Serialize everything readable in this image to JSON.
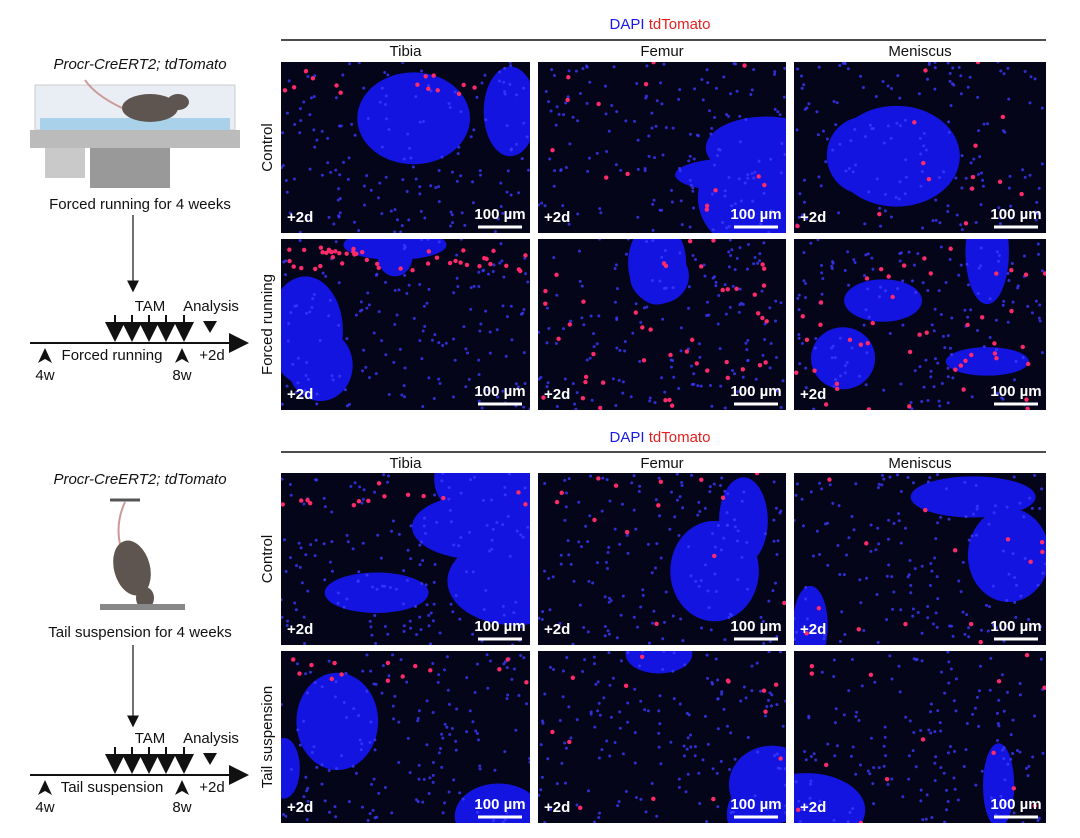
{
  "panels": [
    {
      "genotype": "Procr-CreERT2; tdTomato",
      "caption": "Forced running for 4 weeks",
      "timeline": {
        "treatment_label": "TAM",
        "analysis_label": "Analysis",
        "period_label": "Forced running",
        "start_label": "4w",
        "end_label": "8w",
        "chase_label": "+2d"
      },
      "stain": {
        "dapi": "DAPI",
        "tdtomato": "tdTomato"
      },
      "columns": [
        "Tibia",
        "Femur",
        "Meniscus"
      ],
      "rows": [
        {
          "label": "Control",
          "images": [
            {
              "time": "+2d",
              "scale_bar": "100 µm"
            },
            {
              "time": "+2d",
              "scale_bar": "100 µm"
            },
            {
              "time": "+2d",
              "scale_bar": "100 µm"
            }
          ]
        },
        {
          "label": "Forced running",
          "images": [
            {
              "time": "+2d",
              "scale_bar": "100 µm"
            },
            {
              "time": "+2d",
              "scale_bar": "100 µm"
            },
            {
              "time": "+2d",
              "scale_bar": "100 µm"
            }
          ]
        }
      ]
    },
    {
      "genotype": "Procr-CreERT2; tdTomato",
      "caption": "Tail suspension for 4 weeks",
      "timeline": {
        "treatment_label": "TAM",
        "analysis_label": "Analysis",
        "period_label": "Tail suspension",
        "start_label": "4w",
        "end_label": "8w",
        "chase_label": "+2d"
      },
      "stain": {
        "dapi": "DAPI",
        "tdtomato": "tdTomato"
      },
      "columns": [
        "Tibia",
        "Femur",
        "Meniscus"
      ],
      "rows": [
        {
          "label": "Control",
          "images": [
            {
              "time": "+2d",
              "scale_bar": "100 µm"
            },
            {
              "time": "+2d",
              "scale_bar": "100 µm"
            },
            {
              "time": "+2d",
              "scale_bar": "100 µm"
            }
          ]
        },
        {
          "label": "Tail suspension",
          "images": [
            {
              "time": "+2d",
              "scale_bar": "100 µm"
            },
            {
              "time": "+2d",
              "scale_bar": "100 µm"
            },
            {
              "time": "+2d",
              "scale_bar": "100 µm"
            }
          ]
        }
      ]
    }
  ]
}
